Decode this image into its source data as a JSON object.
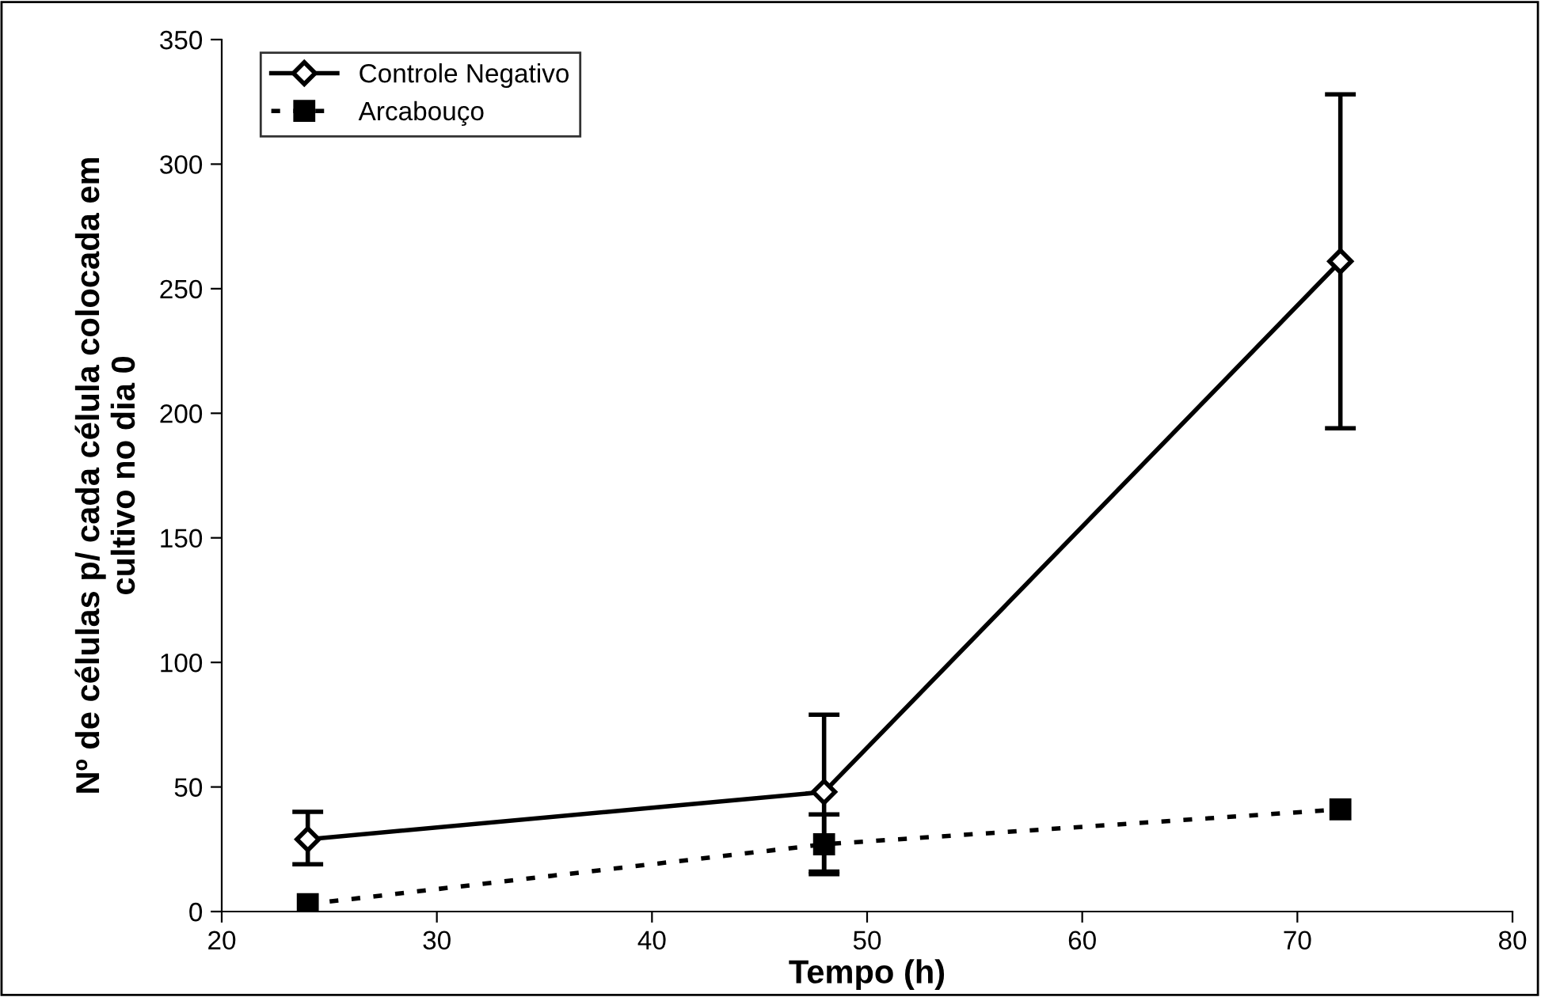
{
  "chart_data": {
    "type": "line",
    "xlabel": "Tempo (h)",
    "ylabel": "Nº de células p/ cada célula colocada em\ncultivo no dia 0",
    "xlim": [
      20,
      80
    ],
    "xticks": [
      20,
      30,
      40,
      50,
      60,
      70,
      80
    ],
    "ylim": [
      0,
      350
    ],
    "yticks": [
      0,
      50,
      100,
      150,
      200,
      250,
      300,
      350
    ],
    "grid": false,
    "legend": "top left",
    "series": [
      {
        "name": "Controle Negativo",
        "color": "#000000",
        "x": [
          24,
          48,
          72
        ],
        "values": [
          29,
          48,
          261
        ],
        "errors": [
          [
            19,
            40
          ],
          [
            16,
            79
          ],
          [
            194,
            328
          ]
        ],
        "marker": "diamond",
        "line_style": "solid"
      },
      {
        "name": "Arcabouço",
        "color": "#000000",
        "x": [
          24,
          48,
          72
        ],
        "values": [
          3,
          27,
          41
        ],
        "errors": [
          null,
          [
            15,
            39
          ],
          null
        ],
        "marker": "square",
        "line_style": "dotted"
      }
    ]
  }
}
